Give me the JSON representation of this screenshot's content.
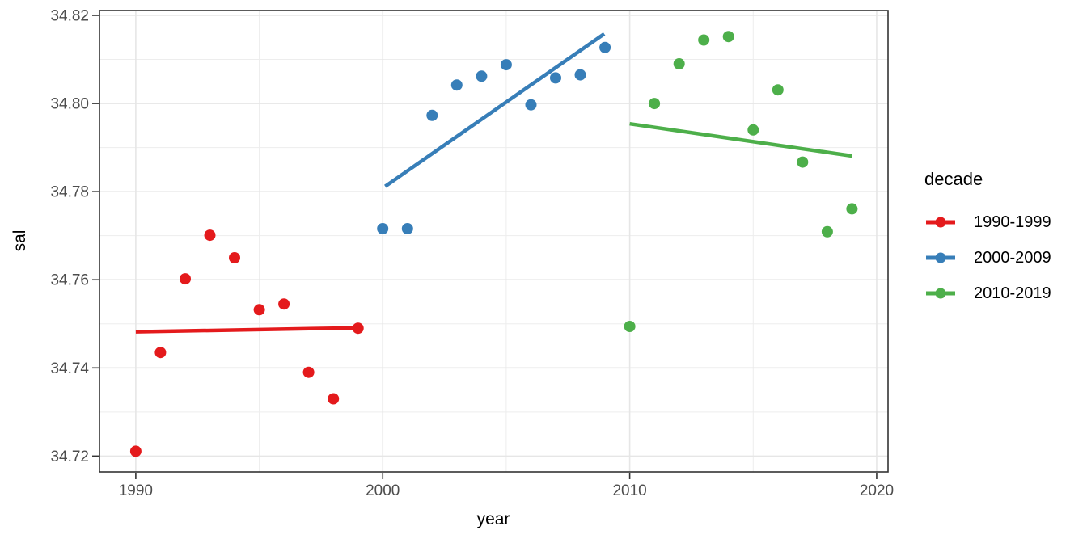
{
  "chart_data": {
    "type": "scatter",
    "title": "",
    "xlabel": "year",
    "ylabel": "sal",
    "legend": {
      "title": "decade",
      "position": "right"
    },
    "axes": {
      "xlim": [
        1988.53,
        2020.46
      ],
      "ylim": [
        34.7164,
        34.8211
      ],
      "x_major_ticks": [
        1990,
        2000,
        2010,
        2020
      ],
      "x_tick_labels": [
        "1990",
        "2000",
        "2010",
        "2020"
      ],
      "x_minor_ticks": [
        1995,
        2005,
        2015
      ],
      "y_major_ticks": [
        34.72,
        34.74,
        34.76,
        34.78,
        34.8,
        34.82
      ],
      "y_tick_labels": [
        "34.72",
        "34.74",
        "34.76",
        "34.78",
        "34.80",
        "34.82"
      ],
      "y_minor_ticks": [
        34.73,
        34.75,
        34.77,
        34.79,
        34.81
      ],
      "grid": true
    },
    "style": {
      "grid_major_color": "#E6E6E6",
      "grid_minor_color": "#EDEDED",
      "panel_border_color": "#333333",
      "tick_color": "#333333",
      "tick_label_color": "#4D4D4D",
      "point_radius": 7,
      "trend_width": 4.5
    },
    "series": [
      {
        "name": "1990-1999",
        "color": "#E41A1C",
        "x": [
          1990,
          1991,
          1992,
          1993,
          1994,
          1995,
          1996,
          1997,
          1998,
          1999
        ],
        "y": [
          34.7211,
          34.7435,
          34.7602,
          34.7701,
          34.765,
          34.7532,
          34.7545,
          34.739,
          34.733,
          34.749
        ],
        "trend": {
          "x": [
            1990.0,
            1999.0
          ],
          "y": [
            34.7482,
            34.7491
          ]
        }
      },
      {
        "name": "2000-2009",
        "color": "#377EB8",
        "x": [
          2000,
          2001,
          2002,
          2003,
          2004,
          2005,
          2006,
          2007,
          2008,
          2009
        ],
        "y": [
          34.7716,
          34.7716,
          34.7973,
          34.8042,
          34.8062,
          34.8088,
          34.7997,
          34.8058,
          34.8065,
          34.8127
        ],
        "trend": {
          "x": [
            2000.1,
            2008.97
          ],
          "y": [
            34.7812,
            34.8158
          ]
        }
      },
      {
        "name": "2010-2019",
        "color": "#4DAF4A",
        "x": [
          2010,
          2011,
          2012,
          2013,
          2014,
          2015,
          2016,
          2017,
          2018,
          2019
        ],
        "y": [
          34.7494,
          34.8,
          34.809,
          34.8144,
          34.8152,
          34.794,
          34.8031,
          34.7867,
          34.7709,
          34.7761
        ],
        "trend": {
          "x": [
            2010.0,
            2019.0
          ],
          "y": [
            34.7954,
            34.7881
          ]
        }
      }
    ]
  }
}
